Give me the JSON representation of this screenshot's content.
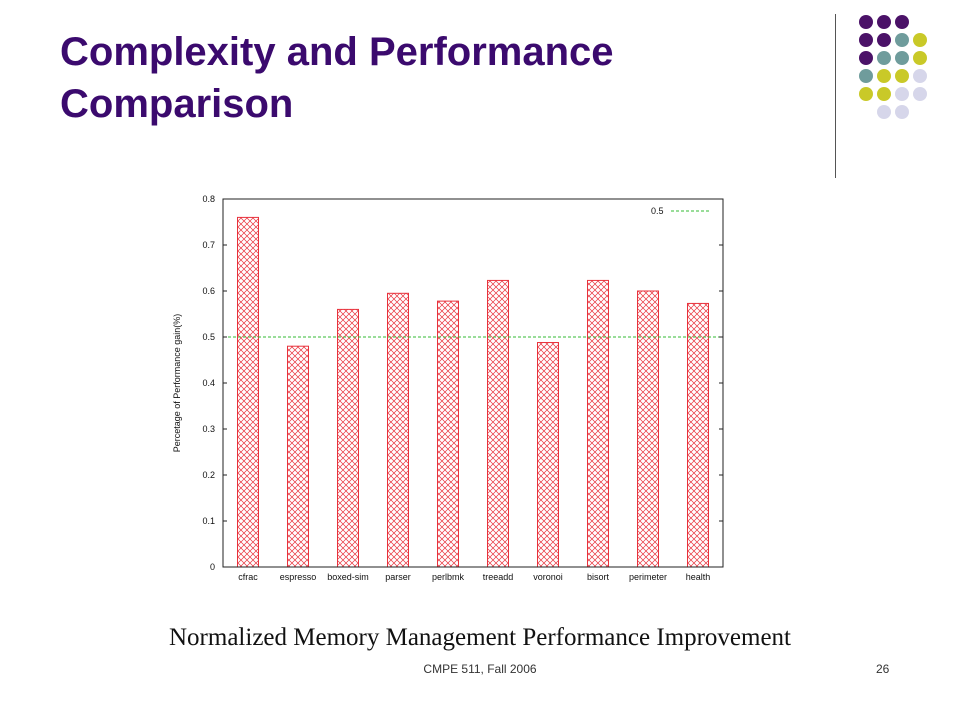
{
  "slide": {
    "title_line1": "Complexity and Performance",
    "title_line2": "Comparison",
    "caption": "Normalized Memory Management Performance Improvement",
    "footer": "CMPE  511, Fall 2006",
    "page_number": "26"
  },
  "colors": {
    "title": "#3b0a6e",
    "dot_purple": "#4b1268",
    "dot_teal": "#6f9c9c",
    "dot_yellow": "#c9c928",
    "dot_lavender": "#d6d6ea",
    "bar_stroke": "#e8323c",
    "reference_line": "#33bb33"
  },
  "decoration": {
    "dot_rows": [
      [
        "purple",
        "purple",
        "purple"
      ],
      [
        "purple",
        "purple",
        "teal",
        "yellow"
      ],
      [
        "purple",
        "teal",
        "teal",
        "yellow"
      ],
      [
        "teal",
        "yellow",
        "yellow",
        "lavender"
      ],
      [
        "yellow",
        "yellow",
        "lavender",
        "lavender"
      ],
      [
        "lavender",
        "lavender"
      ]
    ]
  },
  "chart_data": {
    "type": "bar",
    "title": "",
    "xlabel": "",
    "ylabel": "Percetage of Performance gain(%)",
    "ylim": [
      0,
      0.8
    ],
    "yticks": [
      "0",
      "0.1",
      "0.2",
      "0.3",
      "0.4",
      "0.5",
      "0.6",
      "0.7",
      "0.8"
    ],
    "grid": false,
    "categories": [
      "cfrac",
      "espresso",
      "boxed-sim",
      "parser",
      "perlbmk",
      "treeadd",
      "voronoi",
      "bisort",
      "perimeter",
      "health"
    ],
    "values": [
      0.76,
      0.48,
      0.56,
      0.595,
      0.578,
      0.623,
      0.488,
      0.623,
      0.6,
      0.573
    ],
    "reference_line": {
      "label": "0.5",
      "value": 0.5
    },
    "legend_position": "top-right",
    "fill_pattern": "crosshatch"
  }
}
